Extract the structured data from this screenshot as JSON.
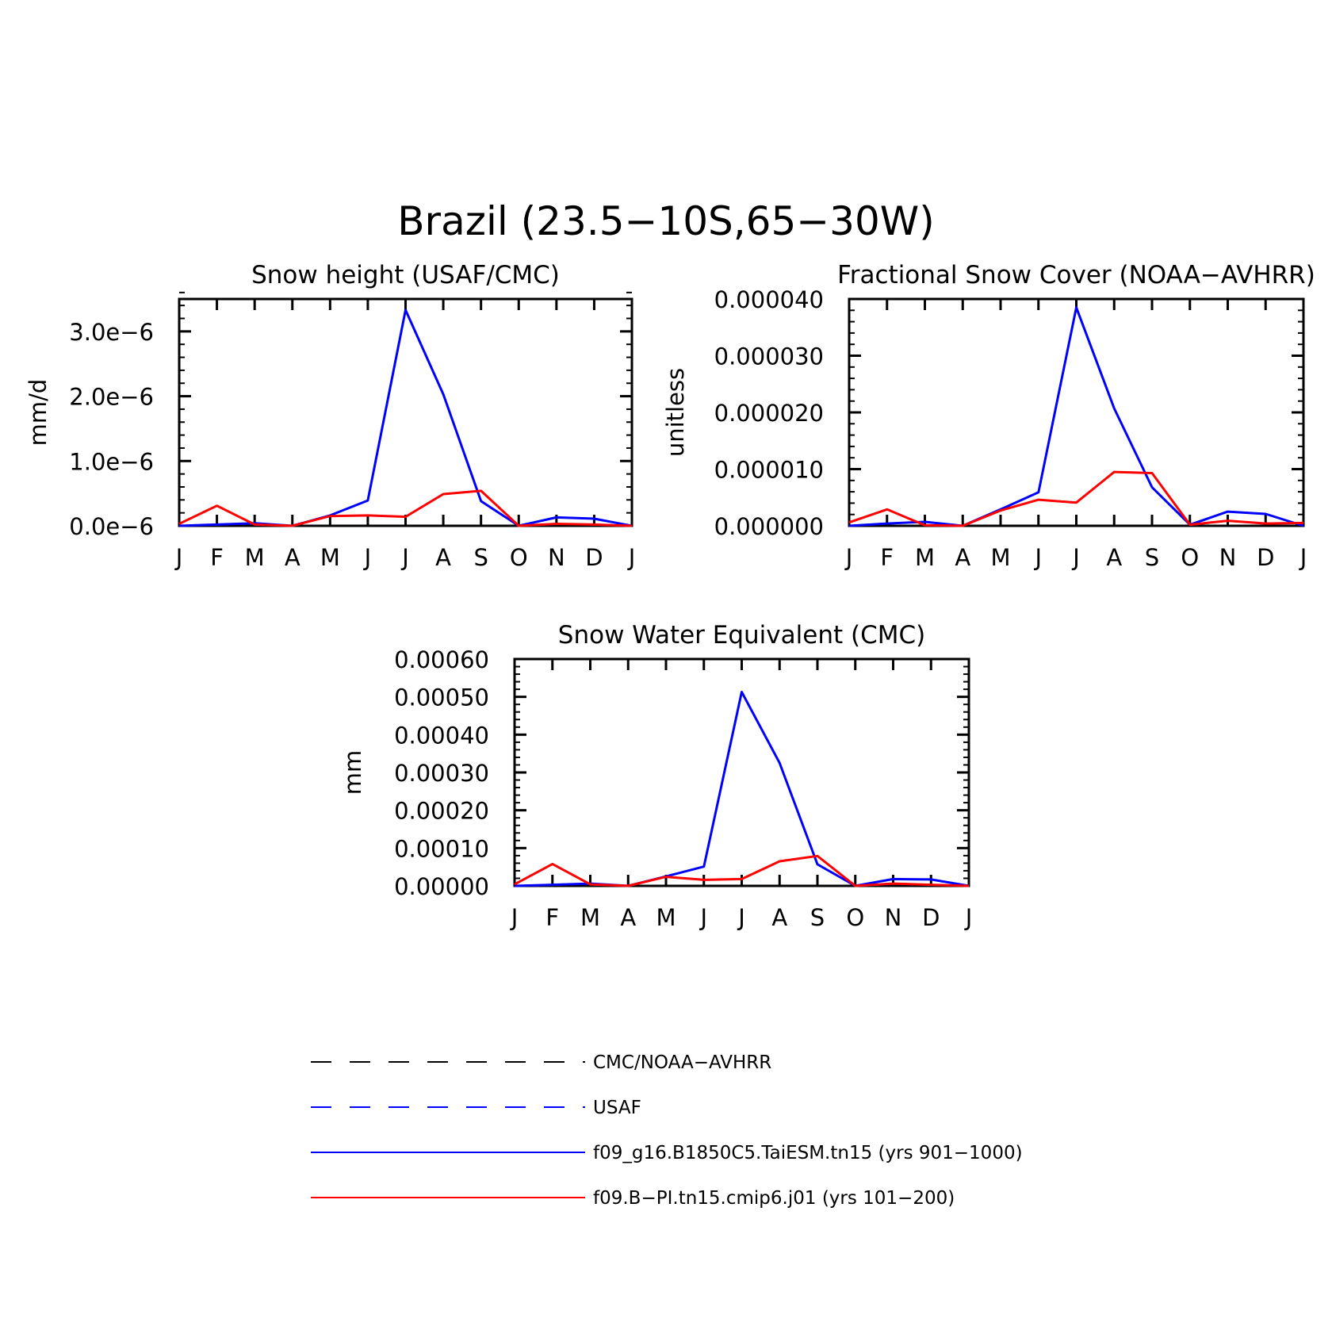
{
  "figure": {
    "title": "Brazil (23.5−10S,65−30W)"
  },
  "legend": [
    {
      "label": "CMC/NOAA−AVHRR",
      "color": "#000000",
      "style": "dashed"
    },
    {
      "label": "USAF",
      "color": "#0000ff",
      "style": "dashed"
    },
    {
      "label": "f09_g16.B1850C5.TaiESM.tn15 (yrs 901−1000)",
      "color": "#0000ff",
      "style": "solid"
    },
    {
      "label": "f09.B−PI.tn15.cmip6.j01 (yrs 101−200)",
      "color": "#ff0000",
      "style": "solid"
    }
  ],
  "chart_data": [
    {
      "type": "line",
      "title": "Snow height (USAF/CMC)",
      "xlabel": "",
      "ylabel": "mm/d",
      "categories": [
        "J",
        "F",
        "M",
        "A",
        "M",
        "J",
        "J",
        "A",
        "S",
        "O",
        "N",
        "D",
        "J"
      ],
      "ylim": [
        0,
        3.5e-06
      ],
      "yticks": [
        0,
        1e-06,
        2e-06,
        3e-06
      ],
      "ytick_labels": [
        "0.0e−6",
        "1.0e−6",
        "2.0e−6",
        "3.0e−6"
      ],
      "yminor_step": 2e-07,
      "series": [
        {
          "name": "CMC/NOAA−AVHRR",
          "color": "#000000",
          "style": "dashed",
          "values": [
            0,
            0,
            0,
            0,
            0,
            0,
            0,
            0,
            0,
            0,
            0,
            0,
            0
          ]
        },
        {
          "name": "f09_g16.B1850C5.TaiESM.tn15 (yrs 901−1000)",
          "color": "#0000ff",
          "style": "solid",
          "values": [
            0.0,
            2e-08,
            4e-08,
            0.0,
            1.6e-07,
            3.9e-07,
            3.33e-06,
            2.03e-06,
            3.8e-07,
            0.0,
            1.3e-07,
            1.1e-07,
            0.0
          ]
        },
        {
          "name": "f09.B−PI.tn15.cmip6.j01 (yrs 101−200)",
          "color": "#ff0000",
          "style": "solid",
          "values": [
            3e-08,
            3.1e-07,
            2e-08,
            0.0,
            1.5e-07,
            1.6e-07,
            1.4e-07,
            4.9e-07,
            5.4e-07,
            0.0,
            3e-08,
            2e-08,
            0.0
          ]
        }
      ]
    },
    {
      "type": "line",
      "title": "Fractional Snow Cover (NOAA−AVHRR)",
      "xlabel": "",
      "ylabel": "unitless",
      "categories": [
        "J",
        "F",
        "M",
        "A",
        "M",
        "J",
        "J",
        "A",
        "S",
        "O",
        "N",
        "D",
        "J"
      ],
      "ylim": [
        0,
        4e-05
      ],
      "yticks": [
        0,
        1e-05,
        2e-05,
        3e-05,
        4e-05
      ],
      "ytick_labels": [
        "0.000000",
        "0.000010",
        "0.000020",
        "0.000030",
        "0.000040"
      ],
      "yminor_step": 2e-06,
      "series": [
        {
          "name": "CMC/NOAA−AVHRR",
          "color": "#000000",
          "style": "dashed",
          "values": [
            0,
            0,
            0,
            0,
            0,
            0,
            0,
            0,
            0,
            0,
            0,
            0,
            0
          ]
        },
        {
          "name": "f09_g16.B1850C5.TaiESM.tn15 (yrs 901−1000)",
          "color": "#0000ff",
          "style": "solid",
          "values": [
            0.0,
            4e-07,
            7e-07,
            0.0,
            2.9e-06,
            5.9e-06,
            3.85e-05,
            2.07e-05,
            6.8e-06,
            2e-07,
            2.5e-06,
            2.1e-06,
            0.0
          ]
        },
        {
          "name": "f09.B−PI.tn15.cmip6.j01 (yrs 101−200)",
          "color": "#ff0000",
          "style": "solid",
          "values": [
            6e-07,
            2.9e-06,
            1e-07,
            0.0,
            2.7e-06,
            4.6e-06,
            4.1e-06,
            9.5e-06,
            9.3e-06,
            2e-07,
            9e-07,
            4e-07,
            5e-07
          ]
        }
      ]
    },
    {
      "type": "line",
      "title": "Snow Water Equivalent (CMC)",
      "xlabel": "",
      "ylabel": "mm",
      "categories": [
        "J",
        "F",
        "M",
        "A",
        "M",
        "J",
        "J",
        "A",
        "S",
        "O",
        "N",
        "D",
        "J"
      ],
      "ylim": [
        0,
        0.0006
      ],
      "yticks": [
        0,
        0.0001,
        0.0002,
        0.0003,
        0.0004,
        0.0005,
        0.0006
      ],
      "ytick_labels": [
        "0.00000",
        "0.00010",
        "0.00020",
        "0.00030",
        "0.00040",
        "0.00050",
        "0.00060"
      ],
      "yminor_step": 2e-05,
      "series": [
        {
          "name": "CMC/NOAA−AVHRR",
          "color": "#000000",
          "style": "dashed",
          "values": [
            0,
            0,
            0,
            0,
            0,
            0,
            0,
            0,
            0,
            0,
            0,
            0,
            0
          ]
        },
        {
          "name": "f09_g16.B1850C5.TaiESM.tn15 (yrs 901−1000)",
          "color": "#0000ff",
          "style": "solid",
          "values": [
            0.0,
            3e-06,
            6e-06,
            0.0,
            2.5e-05,
            5.1e-05,
            0.000513,
            0.000325,
            5.7e-05,
            0.0,
            1.8e-05,
            1.7e-05,
            0.0
          ]
        },
        {
          "name": "f09.B−PI.tn15.cmip6.j01 (yrs 101−200)",
          "color": "#ff0000",
          "style": "solid",
          "values": [
            4e-06,
            5.8e-05,
            4e-06,
            0.0,
            2.4e-05,
            1.6e-05,
            1.8e-05,
            6.5e-05,
            7.9e-05,
            0.0,
            6e-06,
            3e-06,
            0.0
          ]
        }
      ]
    }
  ]
}
